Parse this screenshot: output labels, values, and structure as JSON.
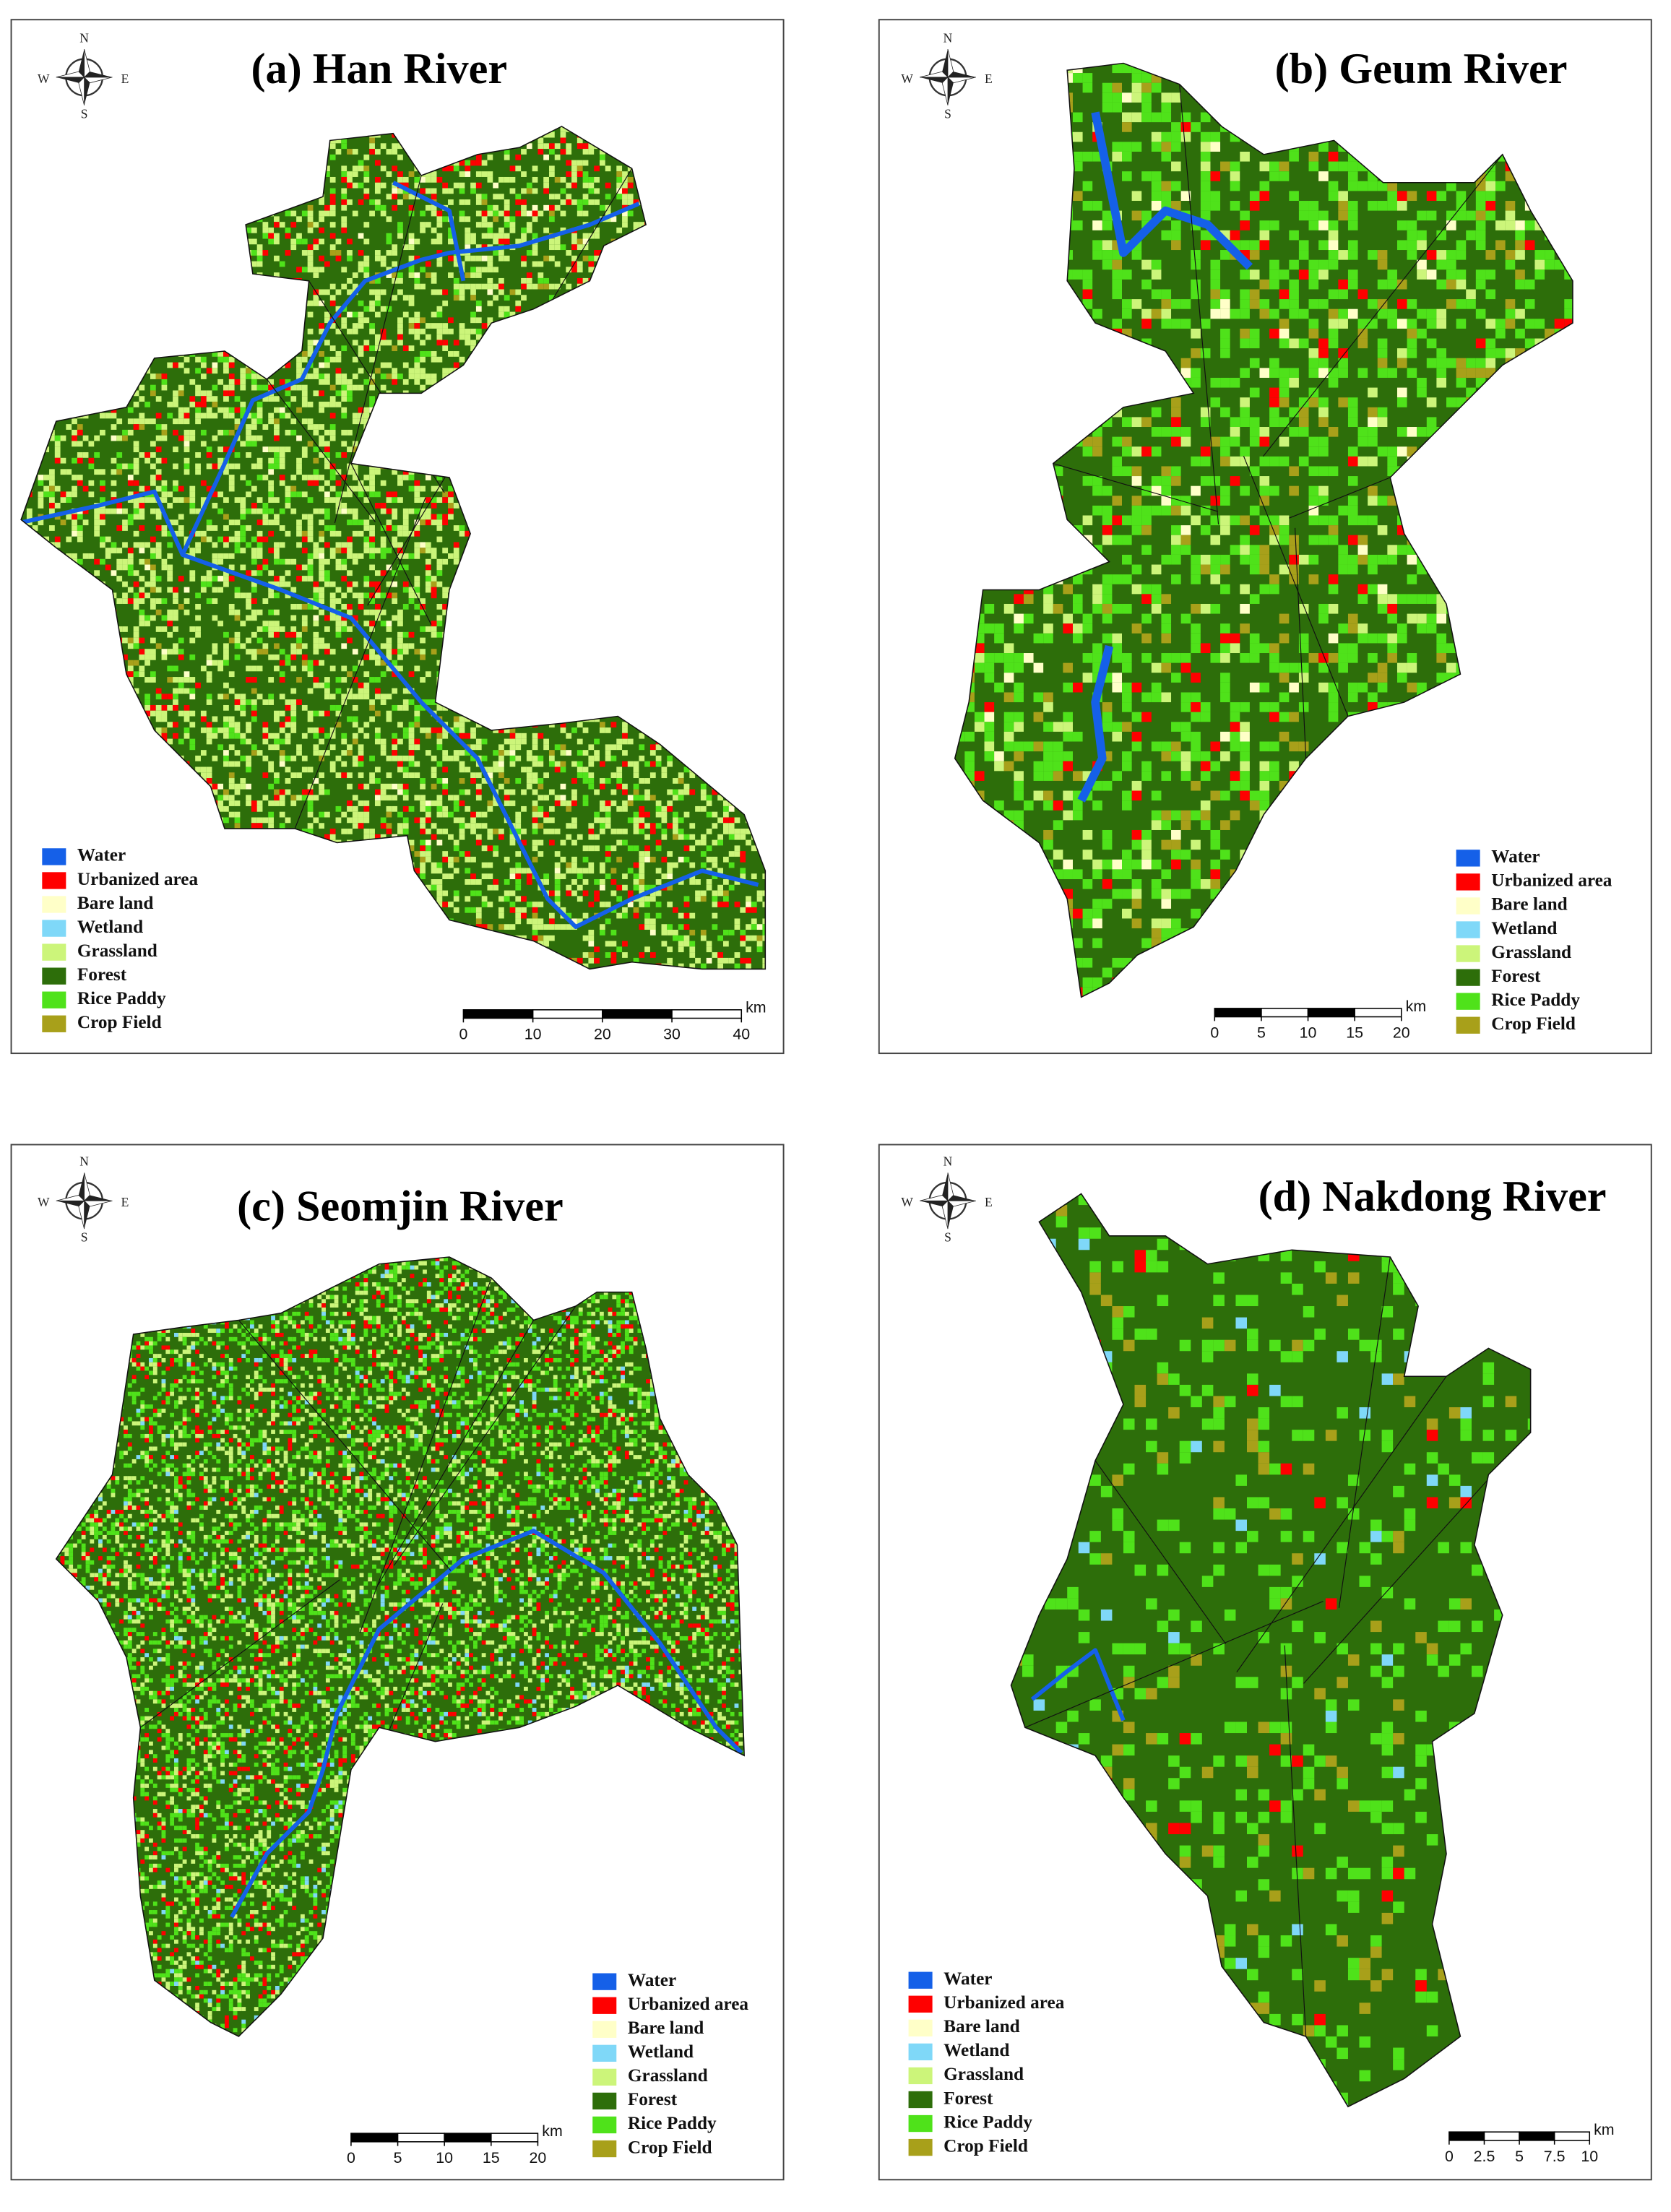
{
  "compass": {
    "n": "N",
    "s": "S",
    "e": "E",
    "w": "W"
  },
  "legend": [
    {
      "label": "Water",
      "color": "#1560e8"
    },
    {
      "label": "Urbanized area",
      "color": "#ff0000"
    },
    {
      "label": "Bare land",
      "color": "#ffffc8"
    },
    {
      "label": "Wetland",
      "color": "#7fd8f8"
    },
    {
      "label": "Grassland",
      "color": "#ccf57a"
    },
    {
      "label": "Forest",
      "color": "#2d6e0a"
    },
    {
      "label": "Rice Paddy",
      "color": "#4fe21a"
    },
    {
      "label": "Crop Field",
      "color": "#a8a01a"
    }
  ],
  "panels": [
    {
      "title": "(a) Han River",
      "scale": {
        "ticks": [
          0,
          10,
          20,
          30,
          40
        ],
        "unit": "km"
      }
    },
    {
      "title": "(b) Geum River",
      "scale": {
        "ticks": [
          0,
          5,
          10,
          15,
          20
        ],
        "unit": "km"
      }
    },
    {
      "title": "(c) Seomjin River",
      "scale": {
        "ticks": [
          0,
          5,
          10,
          15,
          20
        ],
        "unit": "km"
      }
    },
    {
      "title": "(d) Nakdong River",
      "scale": {
        "ticks": [
          0,
          2.5,
          5,
          7.5,
          10
        ],
        "unit": "km"
      }
    }
  ]
}
